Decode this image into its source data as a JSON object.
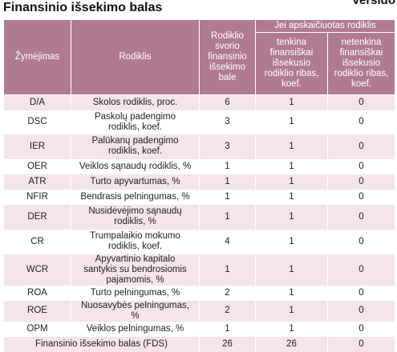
{
  "header": {
    "title": "Finansinio išsekimo balas",
    "corner_text": "Versldo"
  },
  "table": {
    "columns": [
      "Žymėjimas",
      "Rodiklis",
      "Rodiklio svorio finansinio išsekimo bale",
      "Jei apskaičiuotas rodiklis",
      "tenkina finansiškai išsekusio rodiklio ribas, koef.",
      "netenkina finansiškai išsekusio rodiklio ribas, koef."
    ],
    "rows": [
      [
        "D/A",
        "Skolos rodiklis, proc.",
        "6",
        "1",
        "0"
      ],
      [
        "DSC",
        "Paskolų padengimo rodiklis, koef.",
        "3",
        "1",
        "0"
      ],
      [
        "IER",
        "Palūkanų padengimo rodiklis, koef.",
        "3",
        "1",
        "0"
      ],
      [
        "OER",
        "Veiklos sąnaudų rodiklis, %",
        "1",
        "1",
        "0"
      ],
      [
        "ATR",
        "Turto apyvartumas, %",
        "1",
        "1",
        "0"
      ],
      [
        "NFIR",
        "Bendrasis pelningumas, %",
        "1",
        "1",
        "0"
      ],
      [
        "DER",
        "Nusidėvėjimo sąnaudų rodiklis, %",
        "1",
        "1",
        "0"
      ],
      [
        "CR",
        "Trumpalaikio mokumo rodiklis, koef.",
        "4",
        "1",
        "0"
      ],
      [
        "WCR",
        "Apyvartinio kapitalo santykis su bendrosiomis pajamomis, %",
        "1",
        "1",
        "0"
      ],
      [
        "ROA",
        "Turto pelningumas, %",
        "2",
        "1",
        "0"
      ],
      [
        "ROE",
        "Nuosavybės pelningumas, %",
        "2",
        "1",
        "0"
      ],
      [
        "OPM",
        "Veiklos pelningumas, %",
        "1",
        "1",
        "0"
      ]
    ],
    "total": [
      "Finansinio išsekimo balas (FDS)",
      "26",
      "26",
      "0"
    ]
  }
}
